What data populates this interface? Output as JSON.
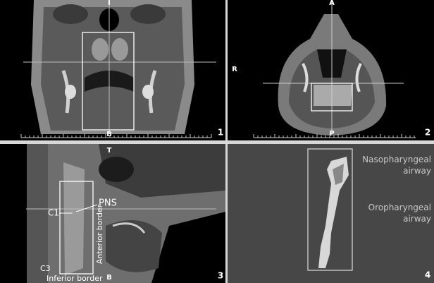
{
  "panels": [
    {
      "number": "1",
      "top": "I",
      "bottom": "B"
    },
    {
      "number": "2",
      "top": "A",
      "left": "R",
      "bottom": "P"
    },
    {
      "number": "3",
      "top": "T",
      "bottom": "B",
      "annotations": [
        "C1",
        "PNS",
        "Anterior border",
        "C3",
        "Inferior border"
      ]
    },
    {
      "number": "4",
      "annotations": [
        "Nasopharyngeal airway",
        "Oropharyngeal airway"
      ]
    }
  ]
}
